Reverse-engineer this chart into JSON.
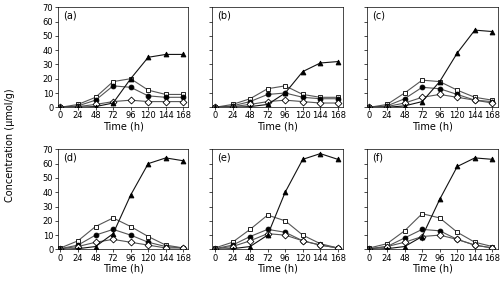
{
  "time": [
    0,
    24,
    48,
    72,
    96,
    120,
    144,
    168
  ],
  "panels": {
    "a": {
      "label": "(a)",
      "diglucoside": [
        0,
        2,
        7,
        18,
        20,
        12,
        9,
        9
      ],
      "rhamnoside_glucoside": [
        0,
        1,
        5,
        15,
        14,
        8,
        7,
        7
      ],
      "glucoside": [
        0,
        0.5,
        2,
        4,
        5,
        4,
        4,
        4
      ],
      "diosgenin": [
        0,
        0,
        0.5,
        3,
        20,
        35,
        37,
        37
      ]
    },
    "b": {
      "label": "(b)",
      "diglucoside": [
        0,
        2,
        6,
        13,
        15,
        9,
        7,
        7
      ],
      "rhamnoside_glucoside": [
        0,
        1,
        4,
        9,
        10,
        7,
        6,
        6
      ],
      "glucoside": [
        0,
        0.5,
        2,
        4,
        5,
        4,
        3,
        3
      ],
      "diosgenin": [
        0,
        0,
        0.5,
        2,
        10,
        25,
        31,
        32
      ]
    },
    "c": {
      "label": "(c)",
      "diglucoside": [
        0,
        2,
        10,
        19,
        18,
        12,
        7,
        5
      ],
      "rhamnoside_glucoside": [
        0,
        1,
        6,
        14,
        13,
        9,
        5,
        4
      ],
      "glucoside": [
        0,
        0.5,
        3,
        7,
        9,
        7,
        5,
        3
      ],
      "diosgenin": [
        0,
        0,
        1,
        4,
        18,
        38,
        54,
        53
      ]
    },
    "d": {
      "label": "(d)",
      "diglucoside": [
        1,
        6,
        16,
        22,
        16,
        9,
        3,
        1
      ],
      "rhamnoside_glucoside": [
        0.5,
        3,
        10,
        14,
        10,
        5,
        2,
        1
      ],
      "glucoside": [
        0.5,
        2,
        5,
        7,
        5,
        3,
        1,
        1
      ],
      "diosgenin": [
        0,
        0.5,
        2,
        11,
        38,
        60,
        64,
        62
      ]
    },
    "e": {
      "label": "(e)",
      "diglucoside": [
        1,
        5,
        14,
        24,
        20,
        10,
        4,
        1
      ],
      "rhamnoside_glucoside": [
        0.5,
        3,
        9,
        14,
        12,
        6,
        3,
        1
      ],
      "glucoside": [
        0.5,
        2,
        6,
        11,
        10,
        6,
        3,
        1
      ],
      "diosgenin": [
        0,
        0.5,
        2,
        10,
        40,
        63,
        67,
        63
      ]
    },
    "f": {
      "label": "(f)",
      "diglucoside": [
        1,
        4,
        13,
        25,
        22,
        12,
        5,
        2
      ],
      "rhamnoside_glucoside": [
        0.5,
        2,
        8,
        14,
        13,
        7,
        3,
        1
      ],
      "glucoside": [
        0.5,
        2,
        5,
        9,
        10,
        7,
        3,
        1
      ],
      "diosgenin": [
        0,
        0.5,
        2,
        9,
        35,
        58,
        64,
        63
      ]
    }
  },
  "ylim": [
    0,
    70
  ],
  "yticks": [
    0,
    10,
    20,
    30,
    40,
    50,
    60,
    70
  ],
  "xticks": [
    0,
    24,
    48,
    72,
    96,
    120,
    144,
    168
  ],
  "xlabel": "Time (h)",
  "ylabel": "Concentration (μmol/g)",
  "background": "#ffffff",
  "line_colors": {
    "diglucoside": "#555555",
    "rhamnoside_glucoside": "#555555",
    "glucoside": "#555555",
    "diosgenin": "#111111"
  },
  "markers": {
    "diglucoside": "s",
    "rhamnoside_glucoside": "o",
    "glucoside": "D",
    "diosgenin": "^"
  },
  "markerfacecolors": {
    "diglucoside": "white",
    "rhamnoside_glucoside": "black",
    "glucoside": "white",
    "diosgenin": "black"
  },
  "markersize": 3.5,
  "linewidth": 0.8,
  "panel_order": [
    "a",
    "b",
    "c",
    "d",
    "e",
    "f"
  ],
  "label_fontsize": 7,
  "tick_fontsize": 6,
  "axis_label_fontsize": 7
}
